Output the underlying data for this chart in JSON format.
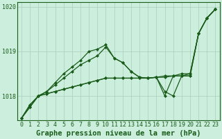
{
  "title": "Graphe pression niveau de la mer (hPa)",
  "xlabel_hours": [
    0,
    1,
    2,
    3,
    4,
    5,
    6,
    7,
    8,
    9,
    10,
    11,
    12,
    13,
    14,
    15,
    16,
    17,
    18,
    19,
    20,
    21,
    22,
    23
  ],
  "series": [
    [
      1017.5,
      1017.75,
      1018.0,
      1018.05,
      1018.1,
      1018.15,
      1018.2,
      1018.25,
      1018.3,
      1018.35,
      1018.4,
      1018.4,
      1018.4,
      1018.4,
      1018.4,
      1018.4,
      1018.42,
      1018.45,
      1018.45,
      1018.45,
      1018.45,
      1019.4,
      1019.75,
      1019.95
    ],
    [
      1017.5,
      1017.75,
      1018.0,
      1018.05,
      1018.1,
      1018.15,
      1018.2,
      1018.25,
      1018.3,
      1018.35,
      1018.4,
      1018.4,
      1018.4,
      1018.4,
      1018.4,
      1018.4,
      1018.42,
      1018.1,
      1018.0,
      1018.45,
      1018.45,
      1019.4,
      1019.75,
      1019.95
    ],
    [
      1017.5,
      1017.8,
      1018.0,
      1018.1,
      1018.25,
      1018.4,
      1018.55,
      1018.7,
      1018.8,
      1018.9,
      1019.1,
      1018.85,
      1018.75,
      1018.55,
      1018.42,
      1018.4,
      1018.42,
      1018.42,
      1018.45,
      1018.45,
      1018.5,
      1019.4,
      1019.75,
      1019.95
    ],
    [
      1017.5,
      1017.8,
      1018.0,
      1018.1,
      1018.3,
      1018.5,
      1018.65,
      1018.8,
      1019.0,
      1019.05,
      1019.15,
      1018.85,
      1018.75,
      1018.55,
      1018.42,
      1018.4,
      1018.42,
      1018.0,
      1018.45,
      1018.5,
      1018.5,
      1019.4,
      1019.75,
      1019.95
    ]
  ],
  "line_color": "#1a5c1a",
  "bg_color": "#cceedd",
  "grid_color": "#aaccbb",
  "text_color": "#1a5c1a",
  "ylim_min": 1017.45,
  "ylim_max": 1020.1,
  "yticks": [
    1018,
    1019,
    1020
  ],
  "title_fontsize": 7.5,
  "tick_fontsize": 6,
  "marker": "D",
  "markersize": 2.0,
  "linewidth": 0.9
}
